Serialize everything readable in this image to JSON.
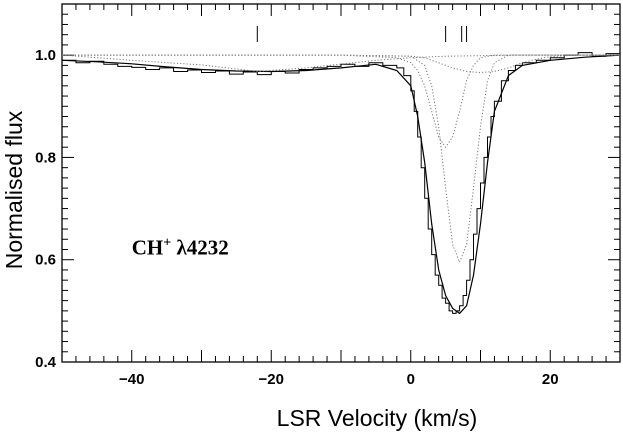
{
  "chart_data": {
    "type": "line",
    "title": "",
    "xlabel": "LSR Velocity (km/s)",
    "ylabel": "Normalised flux",
    "xlim": [
      -50,
      30
    ],
    "ylim": [
      0.4,
      1.1
    ],
    "x_ticks": [
      -40,
      -20,
      0,
      20
    ],
    "x_tick_labels": [
      "−40",
      "−20",
      "0",
      "20"
    ],
    "y_ticks": [
      0.4,
      0.6,
      0.8,
      1.0
    ],
    "y_tick_labels": [
      "0.4",
      "0.6",
      "0.8",
      "1.0"
    ],
    "grid": false,
    "annotation": {
      "species": "CH",
      "superscript": "+",
      "line": " λ4232",
      "x": -40,
      "y": 0.61
    },
    "component_markers": [
      -22,
      5,
      7.3,
      8
    ],
    "series": [
      {
        "style": "histogram",
        "x": [
          -50,
          -48,
          -46,
          -44,
          -42,
          -40,
          -38,
          -36,
          -34,
          -32,
          -30,
          -28,
          -26,
          -24,
          -22,
          -20,
          -18,
          -16,
          -14,
          -12,
          -10,
          -8,
          -6,
          -4,
          -2,
          -1,
          0,
          0.5,
          1,
          1.5,
          2,
          2.5,
          3,
          3.5,
          4,
          4.5,
          5,
          5.5,
          6,
          6.5,
          7,
          7.5,
          8,
          8.5,
          9,
          9.5,
          10,
          10.5,
          11,
          11.5,
          12,
          13,
          14,
          15,
          16,
          18,
          20,
          22,
          24,
          26,
          28,
          30
        ],
        "y": [
          0.99,
          0.985,
          0.988,
          0.982,
          0.978,
          0.976,
          0.972,
          0.975,
          0.968,
          0.971,
          0.966,
          0.969,
          0.963,
          0.967,
          0.962,
          0.968,
          0.965,
          0.972,
          0.975,
          0.978,
          0.982,
          0.978,
          0.985,
          0.98,
          0.975,
          0.96,
          0.93,
          0.89,
          0.84,
          0.78,
          0.72,
          0.66,
          0.61,
          0.57,
          0.55,
          0.525,
          0.515,
          0.5,
          0.495,
          0.5,
          0.51,
          0.53,
          0.56,
          0.6,
          0.65,
          0.7,
          0.75,
          0.8,
          0.84,
          0.88,
          0.91,
          0.95,
          0.97,
          0.98,
          0.985,
          0.99,
          0.995,
          1.0,
          1.005,
          0.998,
          1.003,
          1.005
        ]
      },
      {
        "style": "solid",
        "x": [
          -50,
          -45,
          -40,
          -35,
          -30,
          -25,
          -20,
          -15,
          -10,
          -5,
          -2,
          0,
          1,
          2,
          3,
          4,
          5,
          6,
          7,
          8,
          9,
          10,
          11,
          12,
          14,
          16,
          20,
          25,
          30
        ],
        "y": [
          0.99,
          0.987,
          0.983,
          0.977,
          0.972,
          0.969,
          0.968,
          0.97,
          0.975,
          0.982,
          0.97,
          0.94,
          0.88,
          0.79,
          0.67,
          0.58,
          0.53,
          0.505,
          0.495,
          0.51,
          0.57,
          0.67,
          0.79,
          0.89,
          0.96,
          0.98,
          0.99,
          0.996,
          1.0
        ]
      },
      {
        "style": "dotted",
        "x": [
          -50,
          -40,
          -30,
          -22,
          -15,
          -5,
          0,
          5,
          10,
          15,
          20,
          25,
          30
        ],
        "y": [
          1.0,
          0.99,
          0.981,
          0.968,
          0.975,
          0.99,
          0.995,
          0.998,
          0.999,
          1.0,
          1.0,
          1.0,
          1.0
        ]
      },
      {
        "style": "dotted",
        "x": [
          -50,
          -10,
          -2,
          0,
          1,
          2,
          3,
          4,
          5,
          6,
          7,
          8,
          9,
          10,
          12,
          16,
          30
        ],
        "y": [
          1.0,
          1.0,
          0.995,
          0.985,
          0.97,
          0.94,
          0.89,
          0.84,
          0.82,
          0.84,
          0.89,
          0.95,
          0.98,
          0.995,
          1.0,
          1.0,
          1.0
        ]
      },
      {
        "style": "dotted",
        "x": [
          -50,
          -10,
          0,
          2,
          3,
          4,
          5,
          6,
          7,
          8,
          9,
          10,
          11,
          12,
          14,
          30
        ],
        "y": [
          1.0,
          1.0,
          0.998,
          0.98,
          0.94,
          0.86,
          0.74,
          0.63,
          0.595,
          0.63,
          0.74,
          0.86,
          0.95,
          0.985,
          1.0,
          1.0
        ]
      },
      {
        "style": "dotted",
        "x": [
          -50,
          -10,
          0,
          2,
          4,
          6,
          8,
          10,
          12,
          14,
          16,
          18,
          20,
          22,
          24,
          30
        ],
        "y": [
          1.0,
          1.0,
          0.998,
          0.995,
          0.985,
          0.975,
          0.968,
          0.966,
          0.968,
          0.975,
          0.985,
          0.992,
          0.997,
          0.999,
          1.0,
          1.0
        ]
      }
    ]
  }
}
